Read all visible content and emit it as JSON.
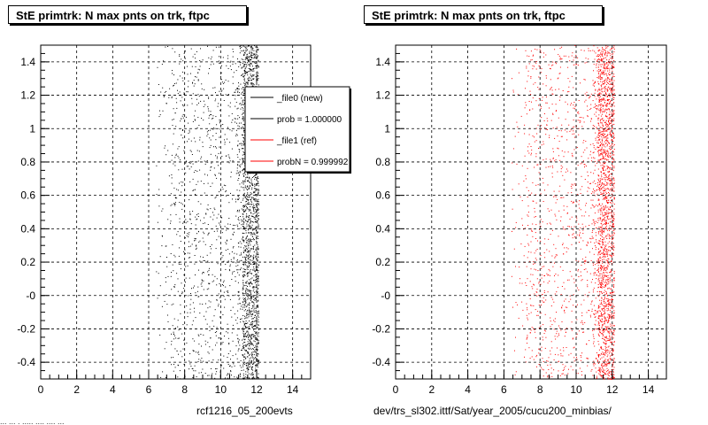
{
  "chart_data": [
    {
      "type": "scatter",
      "title": "StE primtrk: N max pnts on trk, ftpc",
      "xlim": [
        0,
        15
      ],
      "ylim": [
        -0.5,
        1.5
      ],
      "x_ticks": [
        0,
        2,
        4,
        6,
        8,
        10,
        12,
        14
      ],
      "y_ticks": [
        -0.4,
        -0.2,
        -0.0,
        0.2,
        0.4,
        0.6,
        0.8,
        1,
        1.2,
        1.4
      ],
      "y_tick_labels": [
        "-0.4",
        "-0.2",
        "-0",
        "0.2",
        "0.4",
        "0.6",
        "0.8",
        "1",
        "1.2",
        "1.4"
      ],
      "grid": true,
      "footer": "rcf1216_05_200evts",
      "marker_color": "#000000",
      "x_density": [
        {
          "x_range": [
            6.4,
            7.2
          ],
          "weight": 1
        },
        {
          "x_range": [
            7.2,
            9.5
          ],
          "weight": 3
        },
        {
          "x_range": [
            9.5,
            10.9
          ],
          "weight": 3
        },
        {
          "x_range": [
            10.9,
            11.2
          ],
          "weight": 8
        },
        {
          "x_range": [
            11.2,
            12.1
          ],
          "weight": 26
        }
      ],
      "legend": {
        "placement": "top-right",
        "entries": [
          {
            "label": "_file0 (new)",
            "color": "#000000"
          },
          {
            "label": "prob = 1.000000",
            "color": "#000000"
          },
          {
            "label": "_file1 (ref)",
            "color": "#ff0000"
          },
          {
            "label": "probN = 0.999992",
            "color": "#ff0000"
          }
        ]
      }
    },
    {
      "type": "scatter",
      "title": "StE primtrk: N max pnts on trk, ftpc",
      "xlim": [
        0,
        15
      ],
      "ylim": [
        -0.5,
        1.5
      ],
      "x_ticks": [
        0,
        2,
        4,
        6,
        8,
        10,
        12,
        14
      ],
      "y_ticks": [
        -0.4,
        -0.2,
        -0.0,
        0.2,
        0.4,
        0.6,
        0.8,
        1,
        1.2,
        1.4
      ],
      "y_tick_labels": [
        "-0.4",
        "-0.2",
        "-0",
        "0.2",
        "0.4",
        "0.6",
        "0.8",
        "1",
        "1.2",
        "1.4"
      ],
      "grid": true,
      "footer": "dev/trs_sl302.ittf/Sat/year_2005/cucu200_minbias/",
      "marker_color": "#ff0000",
      "x_density": [
        {
          "x_range": [
            6.4,
            7.2
          ],
          "weight": 1
        },
        {
          "x_range": [
            7.2,
            9.5
          ],
          "weight": 3
        },
        {
          "x_range": [
            9.5,
            10.9
          ],
          "weight": 3
        },
        {
          "x_range": [
            10.9,
            11.2
          ],
          "weight": 8
        },
        {
          "x_range": [
            11.2,
            12.1
          ],
          "weight": 26
        }
      ]
    }
  ],
  "footer_clip": "... ... . ..... .... .... ..."
}
